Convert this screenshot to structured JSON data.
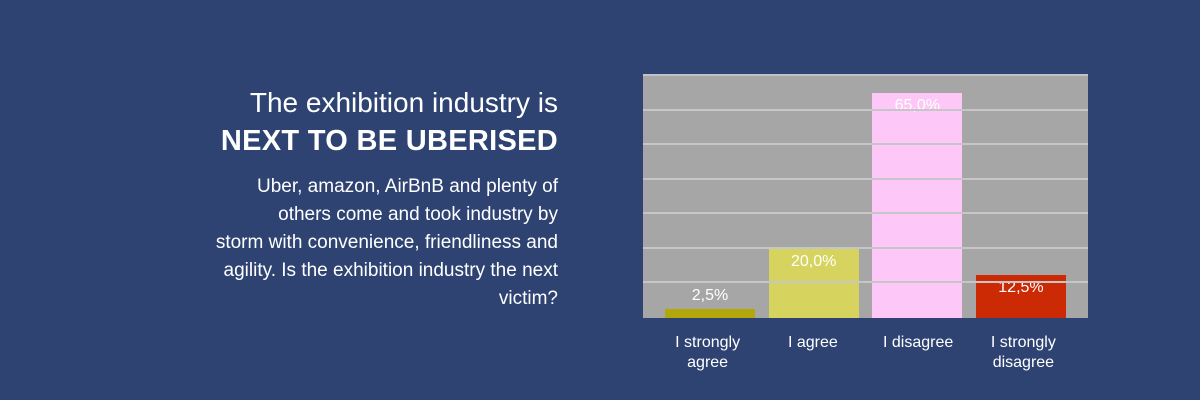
{
  "header": {
    "title_line1": "The exhibition industry is",
    "title_line2": "NEXT TO BE UBERISED",
    "description": "Uber, amazon, AirBnB and plenty of\nothers come and took industry by\nstorm with convenience, friendliness and\nagility. Is the exhibition industry the next\nvictim?"
  },
  "colors": {
    "background": "#2e4372",
    "plot_background": "#a6a6a6",
    "gridline": "#c6c6c6",
    "text": "#ffffff"
  },
  "chart_data": {
    "type": "bar",
    "title": "",
    "xlabel": "",
    "ylabel": "",
    "categories": [
      "I strongly agree",
      "I agree",
      "I disagree",
      "I strongly disagree"
    ],
    "values": [
      2.5,
      20.0,
      65.0,
      12.5
    ],
    "value_labels": [
      "2,5%",
      "20,0%",
      "65,0%",
      "12,5%"
    ],
    "bar_colors": [
      "#b2a80b",
      "#d6d45f",
      "#fdc8f8",
      "#cc2a05"
    ],
    "value_label_positions": [
      "above",
      "inside-top",
      "inside-top",
      "inside-top"
    ],
    "ylim": [
      0,
      70
    ],
    "gridline_step": 10,
    "grid": true,
    "legend": false
  }
}
